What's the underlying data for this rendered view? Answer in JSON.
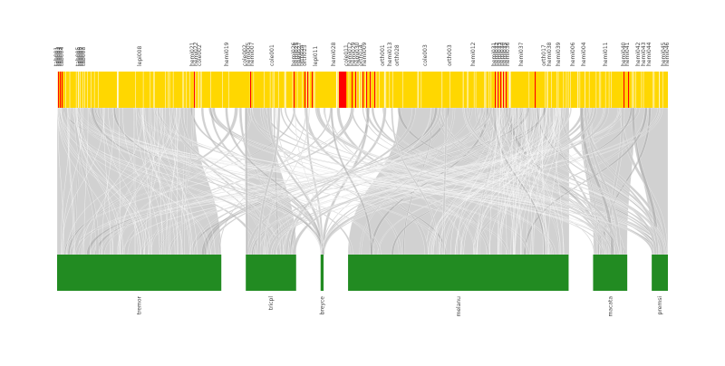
{
  "diagram": {
    "type": "alluvial-bipartite",
    "colors": {
      "top_bar": "#ffd700",
      "top_highlight": "#ff0000",
      "bottom_bar": "#228b22",
      "links": "#cccccc",
      "links_dark": "#a8a8a8",
      "label": "#444444"
    },
    "top_labels": [
      "tab001",
      "tab002",
      "tab003",
      "tab004",
      "tab005",
      "tab006",
      "tab007",
      "tab008",
      "lepi008",
      "hemi021",
      "hemi022",
      "cole002",
      "hemi019",
      "cole002",
      "hemi005",
      "hemi007",
      "cole001",
      "hemi026",
      "hemi025",
      "hemi027",
      "orth024",
      "orth025",
      "lepi011",
      "hemi028",
      "cole011",
      "hemi012",
      "hemi029",
      "hemi030",
      "orth014",
      "hemi009",
      "orth001",
      "hemi013",
      "orth028",
      "cole003",
      "orth003",
      "hemi012",
      "hemi031",
      "hemi032",
      "hemi033",
      "hemi034",
      "hemi035",
      "hemi036",
      "hemi037",
      "orth017",
      "hemi038",
      "hemi039",
      "hemi006",
      "hemi004",
      "hemi011",
      "hemi040",
      "hemi041",
      "hemi042",
      "hemi043",
      "hemi044",
      "hemi045",
      "hemi046"
    ],
    "bottom_groups": [
      {
        "name": "tremor",
        "share": 0.274
      },
      {
        "name": "tricpl",
        "share": 0.084
      },
      {
        "name": "breyce",
        "share": 0.005
      },
      {
        "name": "melanu",
        "share": 0.368
      },
      {
        "name": "macata",
        "share": 0.057
      },
      {
        "name": "premsi",
        "share": 0.027
      }
    ]
  }
}
